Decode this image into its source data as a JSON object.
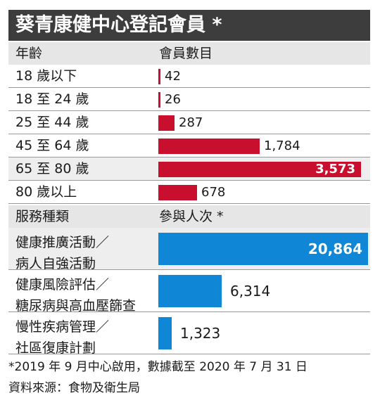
{
  "chart_data": [
    {
      "type": "bar",
      "title": "葵青康健中心登記會員 *",
      "category_header": "年齡",
      "value_header": "會員數目",
      "categories": [
        "18 歲以下",
        "18 至 24 歲",
        "25 至 44 歲",
        "45 至 64 歲",
        "65 至 80 歲",
        "80 歲以上"
      ],
      "values": [
        42,
        26,
        287,
        1784,
        3573,
        678
      ],
      "value_labels": [
        "42",
        "26",
        "287",
        "1,784",
        "3,573",
        "678"
      ],
      "highlight_index": 4,
      "bar_color": "#c8102e",
      "xlim": [
        0,
        3573
      ]
    },
    {
      "type": "bar",
      "category_header": "服務種類",
      "value_header": "參與人次 *",
      "categories": [
        [
          "健康推廣活動／",
          "病人自強活動"
        ],
        [
          "健康風險評估／",
          "糖尿病與高血壓篩查"
        ],
        [
          "慢性疾病管理／",
          "社區復康計劃"
        ]
      ],
      "values": [
        20864,
        6314,
        1323
      ],
      "value_labels": [
        "20,864",
        "6,314",
        "1,323"
      ],
      "highlight_index": 0,
      "bar_color": "#0f86d6",
      "xlim": [
        0,
        20864
      ]
    }
  ],
  "footnote": "*2019 年 9 月中心啟用，數據截至 2020 年 7 月 31 日",
  "source": "資料來源：食物及衛生局",
  "colors": {
    "title_bg": "#3d3d3d",
    "header_bg": "#e6e6e6",
    "alt_row_bg": "#eeeeee"
  }
}
